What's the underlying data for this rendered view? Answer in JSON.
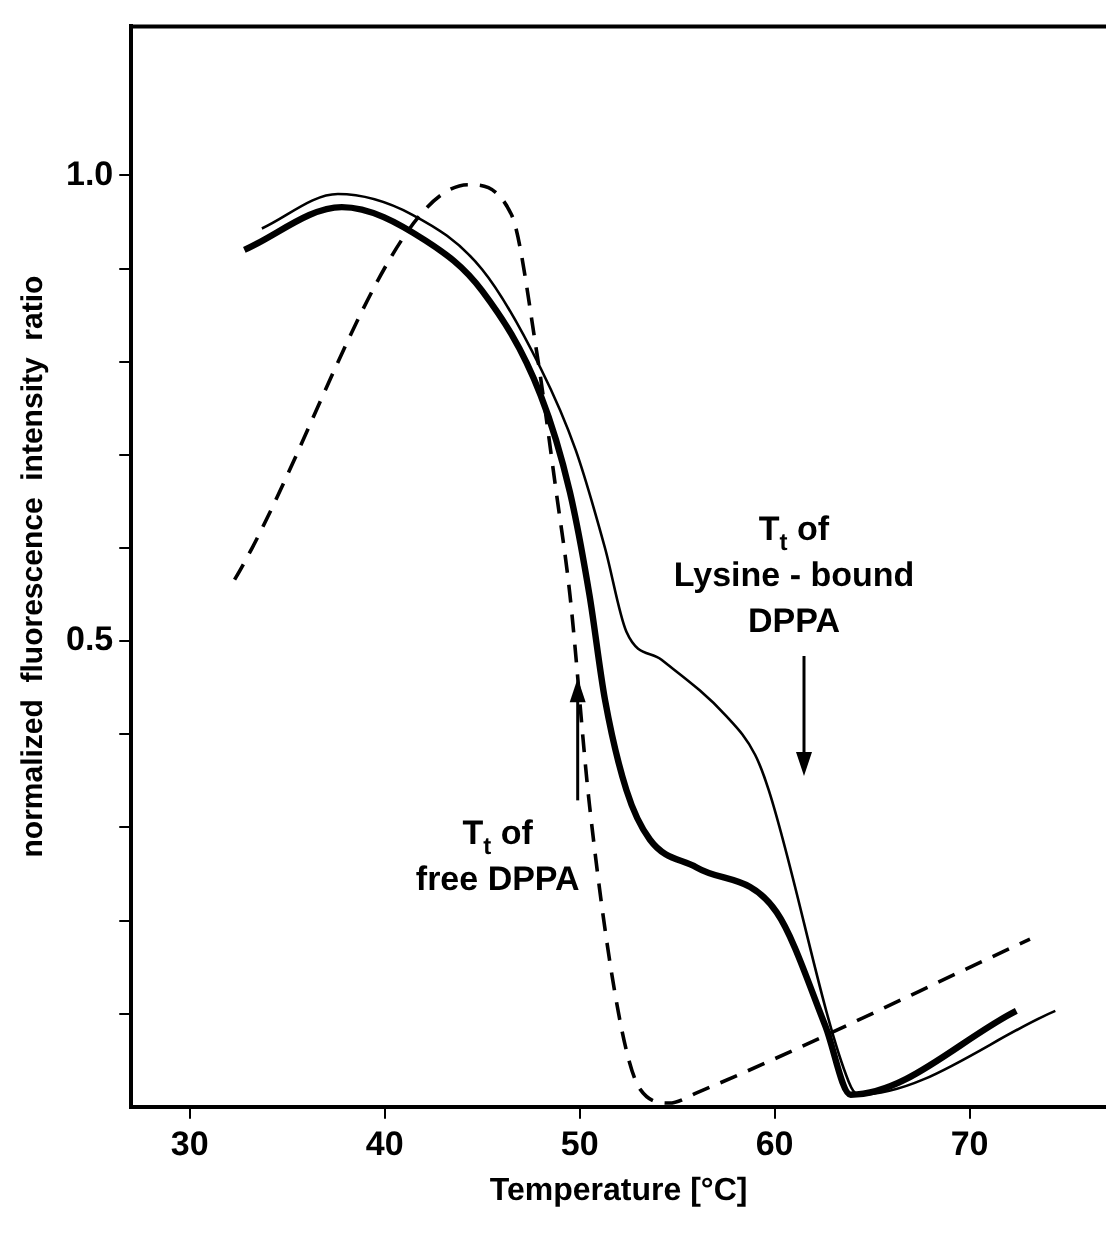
{
  "chart_data": {
    "type": "line",
    "xlabel": "Temperature [°C]",
    "ylabel": "normalized  fluorescence  intensity  ratio",
    "xlim": [
      27,
      77
    ],
    "xticks": [
      30,
      40,
      50,
      60,
      70
    ],
    "ylim": [
      0,
      1.16
    ],
    "yticks": [
      {
        "value": 0.1,
        "label": null
      },
      {
        "value": 0.2,
        "label": null
      },
      {
        "value": 0.3,
        "label": null
      },
      {
        "value": 0.4,
        "label": null
      },
      {
        "value": 0.5,
        "label": "0.5"
      },
      {
        "value": 0.6,
        "label": null
      },
      {
        "value": 0.7,
        "label": null
      },
      {
        "value": 0.8,
        "label": null
      },
      {
        "value": 0.9,
        "label": null
      },
      {
        "value": 1.0,
        "label": "1.0"
      }
    ],
    "grid": false,
    "legend": false,
    "marker": "none",
    "series": [
      {
        "color": "#000000",
        "line_style": "solid",
        "x": [
          32.8,
          37.8,
          42.1,
          45.0,
          48.0,
          49.5,
          50.5,
          51.3,
          52.4,
          53.6,
          56.0,
          60.1,
          62.6,
          63.9,
          72.4
        ],
        "values": [
          0.92,
          0.966,
          0.93,
          0.876,
          0.764,
          0.66,
          0.55,
          0.437,
          0.34,
          0.287,
          0.257,
          0.209,
          0.087,
          0.013,
          0.103
        ]
      },
      {
        "color": "#000000",
        "line_style": "solid",
        "x": [
          33.7,
          37.6,
          41.4,
          45.0,
          48.0,
          49.8,
          51.3,
          52.4,
          54.2,
          57.5,
          59.0,
          59.7,
          63.8,
          64.3,
          74.4
        ],
        "values": [
          0.943,
          0.98,
          0.958,
          0.899,
          0.793,
          0.705,
          0.6,
          0.51,
          0.48,
          0.42,
          0.378,
          0.34,
          0.027,
          0.013,
          0.103
        ]
      },
      {
        "color": "#000000",
        "line_style": "dashed",
        "x": [
          32.3,
          44.3,
          46.5,
          47.8,
          48.8,
          49.5,
          50.5,
          52.0,
          53.1,
          54.6,
          56.0,
          73.1
        ],
        "values": [
          0.566,
          0.99,
          0.958,
          0.81,
          0.66,
          0.55,
          0.325,
          0.1,
          0.019,
          0.004,
          0.015,
          0.18
        ]
      }
    ],
    "annotations": [
      {
        "text": "T$_{t}$ of\nfree DPPA",
        "x": 49.9,
        "y": 0.46
      },
      "T$_{t}$ of\nLysine - bound\nDPPA"
    ]
  }
}
